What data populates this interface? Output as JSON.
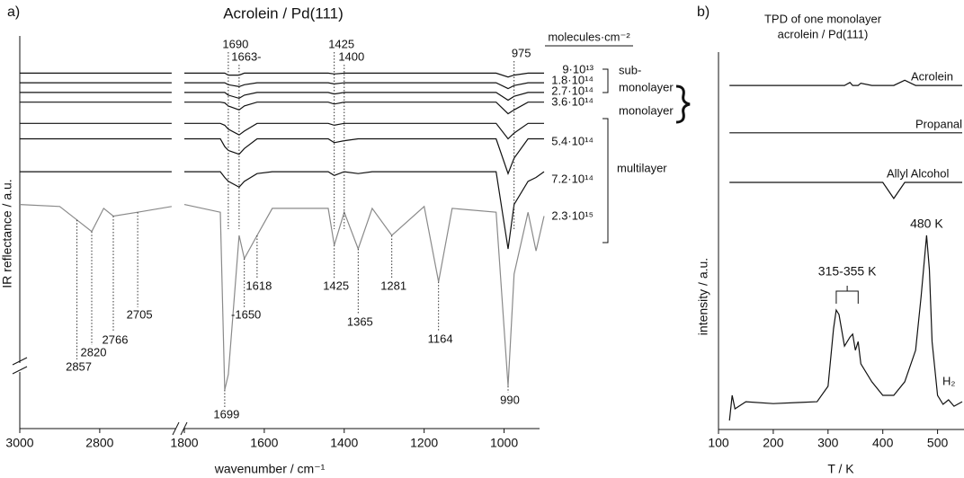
{
  "chart_data": [
    {
      "type": "line",
      "panel_label": "a)",
      "title": "Acrolein / Pd(111)",
      "x_label": "wavenumber / cm⁻¹",
      "y_label": "IR reflectance / a.u.",
      "xlim": [
        3000,
        900
      ],
      "x_break": [
        2620,
        1800
      ],
      "xticks": [
        3000,
        2800,
        1800,
        1600,
        1400,
        1200,
        1000
      ],
      "ylim": [
        0,
        100
      ],
      "legend_title": "molecules·cm⁻²",
      "x": [
        3000,
        2900,
        2857,
        2820,
        2790,
        2766,
        2705,
        2620,
        1800,
        1710,
        1699,
        1690,
        1663,
        1650,
        1618,
        1580,
        1440,
        1425,
        1400,
        1365,
        1330,
        1281,
        1200,
        1164,
        1130,
        1020,
        990,
        975,
        940,
        920,
        900
      ],
      "series": [
        {
          "name": "9·10¹³",
          "color": "#111111",
          "values": [
            92,
            92,
            92,
            92,
            92,
            92,
            92,
            92,
            92,
            92,
            92,
            91.5,
            91.5,
            92,
            92,
            92,
            92,
            91.8,
            92,
            92,
            92,
            92,
            92,
            92,
            92,
            92,
            91,
            91.5,
            92,
            92,
            92
          ]
        },
        {
          "name": "1.8·10¹⁴",
          "color": "#111111",
          "values": [
            89.5,
            89.5,
            89.5,
            89.5,
            89.5,
            89.5,
            89.5,
            89.5,
            89.5,
            89.5,
            89.5,
            89,
            88.5,
            89,
            89.5,
            89.5,
            89.5,
            89.2,
            89.5,
            89.5,
            89.5,
            89.5,
            89.5,
            89.5,
            89.5,
            89.5,
            88,
            88.8,
            89.5,
            89.5,
            89.5
          ]
        },
        {
          "name": "2.7·10¹⁴",
          "color": "#111111",
          "values": [
            87,
            87,
            87,
            87,
            87,
            87,
            87,
            87,
            87,
            87,
            87,
            86.3,
            85.5,
            86.3,
            87,
            87,
            87,
            86.6,
            87,
            87,
            87,
            87,
            87,
            87,
            87,
            87,
            85,
            86,
            87,
            87,
            87
          ]
        },
        {
          "name": "3.6·10¹⁴",
          "color": "#111111",
          "values": [
            84.5,
            84.5,
            84.5,
            84.5,
            84.5,
            84.5,
            84.5,
            84.5,
            84.5,
            84.5,
            84.3,
            83.5,
            82.5,
            83.5,
            84.5,
            84.5,
            84.5,
            84,
            84.5,
            84.5,
            84.5,
            84.5,
            84.5,
            84.5,
            84.5,
            84.5,
            81.5,
            82.5,
            84.5,
            84.5,
            84.5
          ]
        },
        {
          "name": "5.4·10¹⁴",
          "color": "#111111",
          "values": [
            79,
            79,
            79,
            79,
            79,
            79,
            79,
            79,
            79,
            79,
            78.5,
            77.5,
            76,
            77,
            79,
            79,
            79,
            78.5,
            79,
            79,
            79,
            79,
            79,
            79,
            79,
            79,
            75,
            76.5,
            79,
            79,
            79
          ]
        },
        {
          "name": "7.2·10¹⁴",
          "color": "#111111",
          "values": [
            75,
            75,
            75,
            75,
            75,
            75,
            75,
            75,
            75,
            75,
            73,
            72,
            71,
            72.5,
            75,
            75,
            75,
            74,
            74.5,
            75,
            75,
            75,
            75,
            75,
            75,
            75,
            66,
            70,
            75,
            75,
            75
          ]
        },
        {
          "name": "2.3·10¹⁵",
          "color": "#111111",
          "values": [
            66.5,
            66.5,
            66.5,
            66.5,
            66.5,
            66.5,
            66.5,
            66.5,
            66.5,
            66.5,
            65,
            64,
            62.5,
            64,
            66,
            66.5,
            66.5,
            65.5,
            66.5,
            66,
            66.5,
            66.5,
            66.5,
            66.5,
            66.5,
            66.5,
            46.5,
            58,
            64,
            65,
            66.5
          ]
        },
        {
          "name": null,
          "color": "#8a8a8a",
          "values": [
            58,
            57.5,
            54,
            51,
            57,
            55,
            56,
            57.5,
            58,
            56,
            10,
            14,
            50,
            44,
            50,
            57,
            57,
            47.5,
            56,
            46.5,
            57,
            50,
            57.5,
            38,
            57,
            56,
            11,
            40,
            56,
            46,
            55
          ]
        }
      ],
      "groups": [
        [
          "sub-",
          "monolayer"
        ],
        [
          "monolayer"
        ],
        [
          "multilayer"
        ]
      ],
      "peaks_top": [
        1690,
        {
          "value": 1663,
          "label": "1663-"
        },
        1425,
        1400,
        975
      ],
      "peaks_bottom": [
        2857,
        2820,
        2766,
        2705,
        1699,
        {
          "value": 1650,
          "label": "-1650"
        },
        1618,
        1425,
        1365,
        1281,
        1164,
        990
      ]
    },
    {
      "type": "line",
      "panel_label": "b)",
      "title": [
        "TPD of one monolayer",
        "acrolein / Pd(111)"
      ],
      "x_label": "T / K",
      "y_label": "intensity / a.u.",
      "xlim": [
        100,
        545
      ],
      "xticks": [
        100,
        200,
        300,
        400,
        500
      ],
      "ylim": [
        0,
        100
      ],
      "x": [
        120,
        125,
        130,
        150,
        200,
        250,
        280,
        300,
        310,
        315,
        320,
        330,
        340,
        345,
        350,
        355,
        360,
        380,
        400,
        420,
        440,
        460,
        470,
        480,
        485,
        490,
        500,
        510,
        520,
        530,
        545
      ],
      "series": [
        {
          "name": "Acrolein",
          "color": "#111111",
          "values": [
            91.6,
            91.6,
            91.6,
            91.6,
            91.6,
            91.6,
            91.6,
            91.6,
            91.6,
            91.6,
            91.6,
            91.6,
            92.4,
            91.6,
            91.6,
            91.6,
            92.2,
            91.6,
            91.6,
            91.6,
            93,
            91.6,
            91.6,
            91.6,
            91.6,
            91.6,
            91.6,
            91.6,
            91.6,
            91.6,
            91.6
          ]
        },
        {
          "name": "Propanal",
          "color": "#111111",
          "values": [
            79,
            79,
            79,
            79,
            79,
            79,
            79,
            79,
            79,
            79,
            79,
            79,
            79,
            79,
            79,
            79,
            79,
            79,
            79,
            79,
            79,
            79,
            79,
            79,
            79,
            79,
            79,
            79,
            79,
            79,
            79
          ]
        },
        {
          "name": "Allyl Alcohol",
          "color": "#111111",
          "values": [
            65.8,
            65.8,
            65.8,
            65.8,
            65.8,
            65.8,
            65.8,
            65.8,
            65.8,
            65.8,
            65.8,
            65.8,
            65.8,
            65.8,
            65.8,
            65.8,
            65.8,
            65.8,
            65.8,
            61.5,
            65.8,
            65.8,
            65.8,
            65.8,
            65.8,
            65.8,
            65.8,
            65.8,
            65.8,
            65.8,
            65.8
          ]
        },
        {
          "name": "H₂",
          "color": "#111111",
          "values": [
            2.4,
            9.1,
            5.5,
            7.4,
            6.9,
            7.2,
            7.4,
            11.5,
            26.8,
            31.8,
            30.6,
            22.2,
            24.6,
            25.4,
            21.1,
            23.4,
            17.5,
            12.7,
            9.1,
            9.1,
            12.7,
            21.1,
            35.4,
            51.7,
            42.6,
            23.4,
            9.1,
            6.7,
            7.9,
            6.2,
            7.4
          ]
        }
      ],
      "annotations": [
        {
          "label": "315-355 K",
          "range": [
            315,
            355
          ]
        },
        {
          "label": "480 K",
          "value": 480
        }
      ]
    }
  ]
}
